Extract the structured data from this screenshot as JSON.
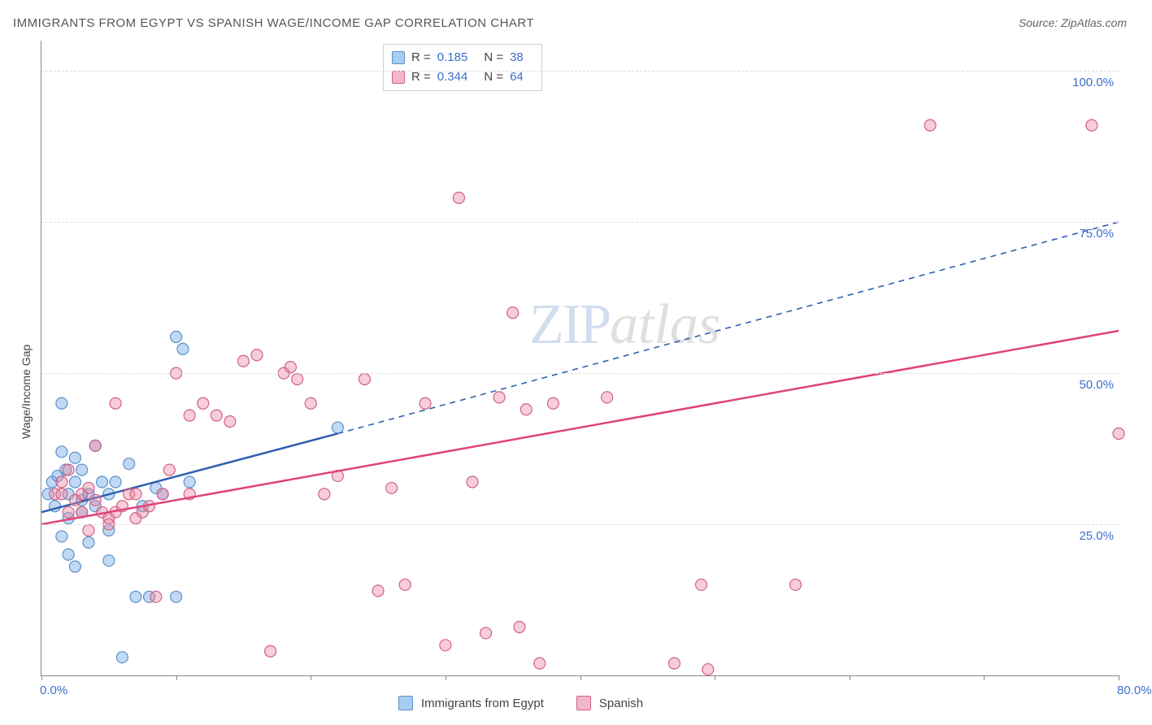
{
  "title": "IMMIGRANTS FROM EGYPT VS SPANISH WAGE/INCOME GAP CORRELATION CHART",
  "source_label": "Source: ",
  "source_name": "ZipAtlas.com",
  "y_axis_label": "Wage/Income Gap",
  "watermark_a": "ZIP",
  "watermark_b": "atlas",
  "chart": {
    "type": "scatter",
    "background_color": "#ffffff",
    "grid_color": "#dddddd",
    "axis_color": "#888888",
    "xlim": [
      0,
      80
    ],
    "ylim": [
      0,
      105
    ],
    "x_tick_positions": [
      0,
      10,
      20,
      30,
      40,
      50,
      60,
      70,
      80
    ],
    "x_tick_labels_shown": {
      "0": "0.0%",
      "80": "80.0%"
    },
    "y_tick_positions": [
      25,
      50,
      75,
      100
    ],
    "y_tick_labels": {
      "25": "25.0%",
      "50": "50.0%",
      "75": "75.0%",
      "100": "100.0%"
    },
    "marker_radius": 7,
    "marker_stroke_width": 1.2,
    "label_fontsize": 15,
    "label_color": "#3b6fc9",
    "ylabel_fontsize": 14,
    "series": [
      {
        "key": "egypt",
        "name": "Immigrants from Egypt",
        "fill": "rgba(120,170,230,0.45)",
        "stroke": "#5a92c9",
        "swatch_fill": "#a9cdf0",
        "swatch_stroke": "#5a92c9",
        "line_color": "#2f60b0",
        "line_dash_extend": true,
        "R": "0.185",
        "N": "38",
        "regression": {
          "x0": 0,
          "y0": 27,
          "x1_solid": 22,
          "y1_solid": 40,
          "x2_dashed": 80,
          "y2_dashed": 75
        },
        "points": [
          [
            0.5,
            30
          ],
          [
            0.8,
            32
          ],
          [
            1.0,
            28
          ],
          [
            1.2,
            33
          ],
          [
            1.5,
            45
          ],
          [
            1.5,
            37
          ],
          [
            1.5,
            23
          ],
          [
            1.8,
            34
          ],
          [
            2.0,
            30
          ],
          [
            2.0,
            26
          ],
          [
            2.0,
            20
          ],
          [
            2.5,
            32
          ],
          [
            2.5,
            36
          ],
          [
            2.5,
            18
          ],
          [
            3.0,
            29
          ],
          [
            3.0,
            27
          ],
          [
            3.0,
            34
          ],
          [
            3.5,
            22
          ],
          [
            3.5,
            30
          ],
          [
            4.0,
            38
          ],
          [
            4.0,
            28
          ],
          [
            4.5,
            32
          ],
          [
            5.0,
            30
          ],
          [
            5.0,
            24
          ],
          [
            5.0,
            19
          ],
          [
            5.5,
            32
          ],
          [
            6.0,
            3
          ],
          [
            6.5,
            35
          ],
          [
            7.0,
            13
          ],
          [
            7.5,
            28
          ],
          [
            8.0,
            13
          ],
          [
            8.5,
            31
          ],
          [
            9.0,
            30
          ],
          [
            10.0,
            56
          ],
          [
            10.0,
            13
          ],
          [
            10.5,
            54
          ],
          [
            11.0,
            32
          ],
          [
            22.0,
            41
          ]
        ]
      },
      {
        "key": "spanish",
        "name": "Spanish",
        "fill": "rgba(235,130,160,0.40)",
        "stroke": "#d06285",
        "swatch_fill": "#f2b8ca",
        "swatch_stroke": "#d06285",
        "line_color": "#e04378",
        "line_dash_extend": false,
        "R": "0.344",
        "N": "64",
        "regression": {
          "x0": 0,
          "y0": 25,
          "x1_solid": 80,
          "y1_solid": 57
        },
        "points": [
          [
            1.0,
            30
          ],
          [
            1.5,
            32
          ],
          [
            1.5,
            30
          ],
          [
            2.0,
            34
          ],
          [
            2.0,
            27
          ],
          [
            2.5,
            29
          ],
          [
            3.0,
            30
          ],
          [
            3.0,
            27
          ],
          [
            3.5,
            31
          ],
          [
            3.5,
            24
          ],
          [
            4.0,
            38
          ],
          [
            4.0,
            29
          ],
          [
            4.5,
            27
          ],
          [
            5.0,
            26
          ],
          [
            5.0,
            25
          ],
          [
            5.5,
            27
          ],
          [
            5.5,
            45
          ],
          [
            6.0,
            28
          ],
          [
            6.5,
            30
          ],
          [
            7.0,
            30
          ],
          [
            7.0,
            26
          ],
          [
            7.5,
            27
          ],
          [
            8.0,
            28
          ],
          [
            8.5,
            13
          ],
          [
            9.0,
            30
          ],
          [
            9.5,
            34
          ],
          [
            10.0,
            50
          ],
          [
            11.0,
            30
          ],
          [
            11.0,
            43
          ],
          [
            12.0,
            45
          ],
          [
            13.0,
            43
          ],
          [
            14.0,
            42
          ],
          [
            15.0,
            52
          ],
          [
            16.0,
            53
          ],
          [
            17.0,
            4
          ],
          [
            18.0,
            50
          ],
          [
            18.5,
            51
          ],
          [
            19.0,
            49
          ],
          [
            20.0,
            45
          ],
          [
            21.0,
            30
          ],
          [
            22.0,
            33
          ],
          [
            24.0,
            49
          ],
          [
            25.0,
            14
          ],
          [
            26.0,
            31
          ],
          [
            27.0,
            15
          ],
          [
            28.5,
            45
          ],
          [
            30.0,
            5
          ],
          [
            31.0,
            79
          ],
          [
            32.0,
            32
          ],
          [
            33.0,
            7
          ],
          [
            34.0,
            46
          ],
          [
            35.0,
            60
          ],
          [
            35.5,
            8
          ],
          [
            36.0,
            44
          ],
          [
            37.0,
            2
          ],
          [
            38.0,
            45
          ],
          [
            42.0,
            46
          ],
          [
            47.0,
            2
          ],
          [
            49.0,
            15
          ],
          [
            49.5,
            1
          ],
          [
            56.0,
            15
          ],
          [
            66.0,
            91
          ],
          [
            78.0,
            91
          ],
          [
            80.0,
            40
          ]
        ]
      }
    ],
    "legend_top_labels": {
      "R": "R  = ",
      "N": "N  = "
    },
    "legend_bottom": [
      {
        "series_key": "egypt"
      },
      {
        "series_key": "spanish"
      }
    ]
  }
}
